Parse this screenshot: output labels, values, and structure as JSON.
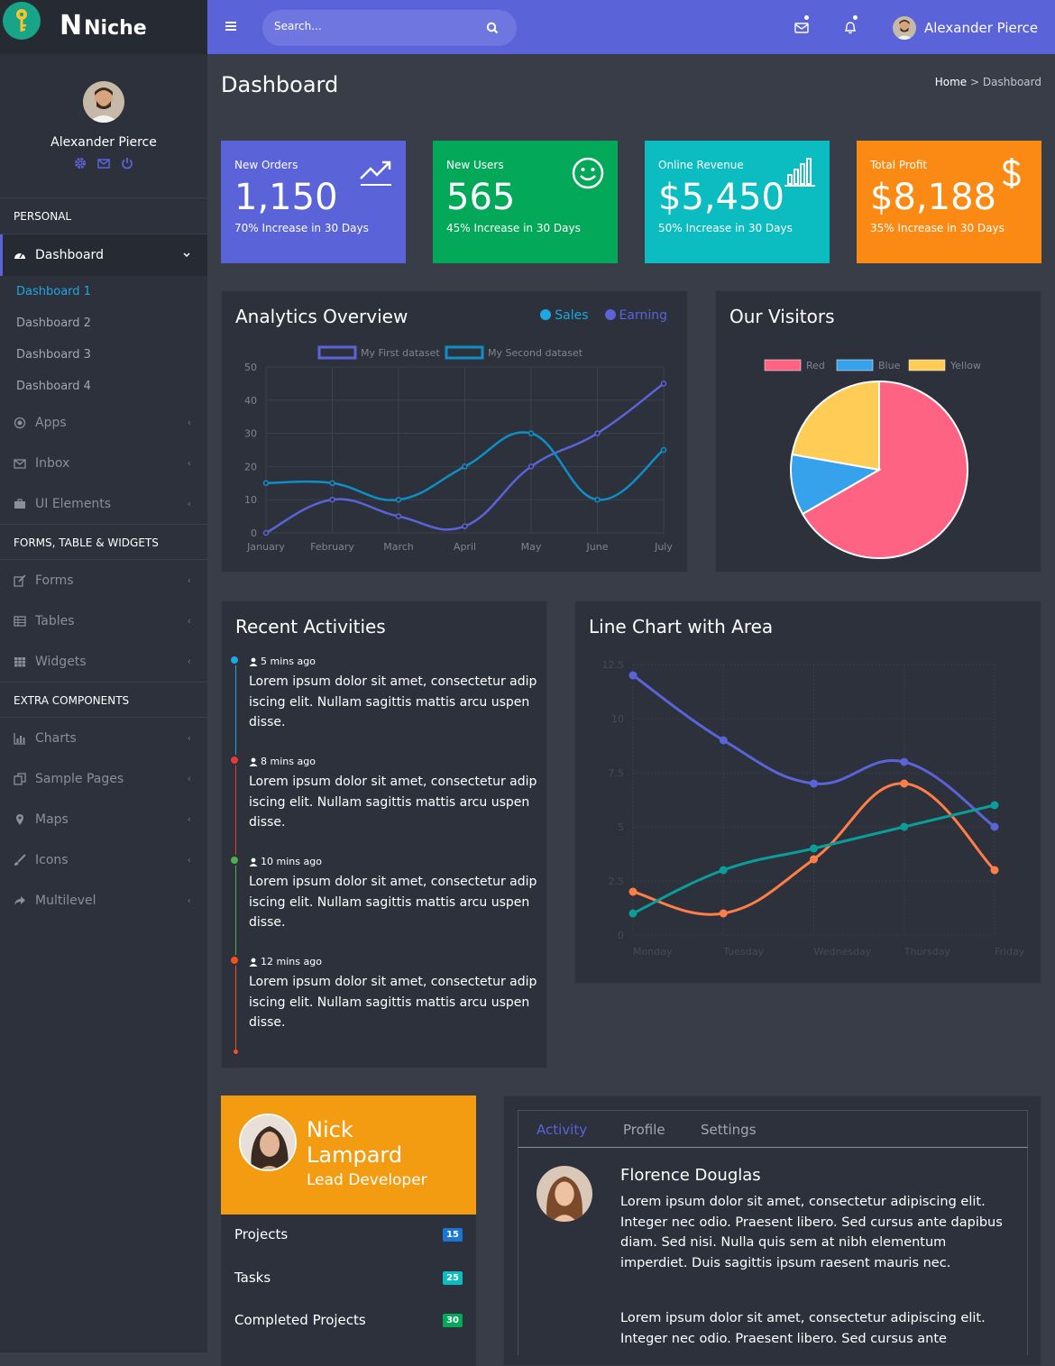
{
  "brand": {
    "name": "Niche",
    "logo_letter": "N"
  },
  "user": {
    "name": "Alexander Pierce"
  },
  "search": {
    "placeholder": "Search..."
  },
  "sidebar": {
    "sections": [
      "PERSONAL",
      "FORMS, TABLE & WIDGETS",
      "EXTRA COMPONENTS"
    ],
    "dashboard": "Dashboard",
    "sub_items": [
      "Dashboard 1",
      "Dashboard 2",
      "Dashboard 3",
      "Dashboard 4"
    ],
    "personal_items": [
      "Apps",
      "Inbox",
      "UI Elements"
    ],
    "forms_items": [
      "Forms",
      "Tables",
      "Widgets"
    ],
    "extra_items": [
      "Charts",
      "Sample Pages",
      "Maps",
      "Icons",
      "Multilevel"
    ]
  },
  "page": {
    "title": "Dashboard",
    "breadcrumb_home": "Home",
    "breadcrumb_sep": ">",
    "breadcrumb_current": "Dashboard"
  },
  "stats": [
    {
      "label": "New Orders",
      "value": "1,150",
      "sub": "70% Increase in 30 Days",
      "color": "#5b63d8",
      "icon": "trending-up-icon"
    },
    {
      "label": "New Users",
      "value": "565",
      "sub": "45% Increase in 30 Days",
      "color": "#03a859",
      "icon": "smiley-icon"
    },
    {
      "label": "Online Revenue",
      "value": "$5,450",
      "sub": "50% Increase in 30 Days",
      "color": "#0bbcc0",
      "icon": "bar-chart-icon"
    },
    {
      "label": "Total Profit",
      "value": "$8,188",
      "sub": "35% Increase in 30 Days",
      "color": "#fb8a15",
      "icon": "dollar-icon"
    }
  ],
  "analytics": {
    "title": "Analytics Overview",
    "legend_sales": "Sales",
    "legend_earning": "Earning"
  },
  "visitors": {
    "title": "Our Visitors"
  },
  "activities": {
    "title": "Recent Activities",
    "items": [
      {
        "time": "5 mins ago",
        "text": "Lorem ipsum dolor sit amet, consectetur adip iscing elit. Nullam sagittis mattis arcu uspen disse.",
        "color": "#1ea7e1"
      },
      {
        "time": "8 mins ago",
        "text": "Lorem ipsum dolor sit amet, consectetur adip iscing elit. Nullam sagittis mattis arcu uspen disse.",
        "color": "#e63a3a"
      },
      {
        "time": "10 mins ago",
        "text": "Lorem ipsum dolor sit amet, consectetur adip iscing elit. Nullam sagittis mattis arcu uspen disse.",
        "color": "#4caf50"
      },
      {
        "time": "12 mins ago",
        "text": "Lorem ipsum dolor sit amet, consectetur adip iscing elit. Nullam sagittis mattis arcu uspen disse.",
        "color": "#f4511e"
      }
    ]
  },
  "area_chart": {
    "title": "Line Chart with Area"
  },
  "profile": {
    "name": "Nick Lampard",
    "role": "Lead Developer",
    "rows": [
      {
        "label": "Projects",
        "count": "15",
        "color": "#1976d2"
      },
      {
        "label": "Tasks",
        "count": "25",
        "color": "#0bbcc0"
      },
      {
        "label": "Completed Projects",
        "count": "30",
        "color": "#03a859"
      }
    ]
  },
  "tabs": {
    "items": [
      "Activity",
      "Profile",
      "Settings"
    ],
    "post_name": "Florence Douglas",
    "post_text1": "Lorem ipsum dolor sit amet, consectetur adipiscing elit. Integer nec odio. Praesent libero. Sed cursus ante dapibus diam. Sed nisi. Nulla quis sem at nibh elementum imperdiet. Duis sagittis ipsum raesent mauris nec.",
    "post_text2": "Lorem ipsum dolor sit amet, consectetur adipiscing elit. Integer nec odio. Praesent libero. Sed cursus ante"
  },
  "chart_data": [
    {
      "type": "line",
      "x": [
        "January",
        "February",
        "March",
        "April",
        "May",
        "June",
        "July"
      ],
      "ylim": [
        0,
        50
      ],
      "yticks": [
        0,
        10,
        20,
        30,
        40,
        50
      ],
      "series": [
        {
          "name": "My First dataset",
          "values": [
            0,
            10,
            5,
            2,
            20,
            30,
            45
          ],
          "color": "#5b63d8"
        },
        {
          "name": "My Second dataset",
          "values": [
            15,
            15,
            10,
            20,
            30,
            10,
            25
          ],
          "color": "#0e8fc7"
        }
      ]
    },
    {
      "type": "pie",
      "series": [
        {
          "name": "Red",
          "value": 300,
          "color": "#ff6384"
        },
        {
          "name": "Blue",
          "value": 50,
          "color": "#36a2eb"
        },
        {
          "name": "Yellow",
          "value": 100,
          "color": "#ffcd56"
        }
      ]
    },
    {
      "type": "line",
      "x": [
        "Monday",
        "Tuesday",
        "Wednesday",
        "Thursday",
        "Friday"
      ],
      "ylim": [
        0,
        12.5
      ],
      "yticks": [
        "0",
        "2.5",
        "5",
        "7.5",
        "10",
        "12.5"
      ],
      "series": [
        {
          "values": [
            12,
            9,
            7,
            8,
            5
          ],
          "color": "#5b63d8"
        },
        {
          "values": [
            2,
            1,
            3.5,
            7,
            3
          ],
          "color": "#ff7e47"
        },
        {
          "values": [
            1,
            3,
            4,
            5,
            6
          ],
          "color": "#0a9d9a"
        }
      ]
    }
  ]
}
